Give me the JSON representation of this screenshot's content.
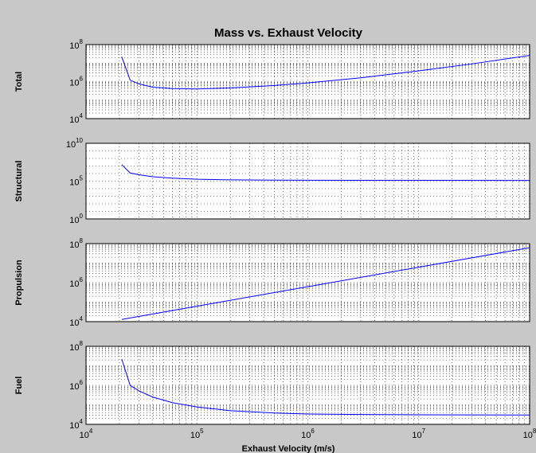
{
  "figure": {
    "background": "#c8c8c8",
    "line_color": "#0000ff",
    "title": "Mass vs. Exhaust Velocity",
    "xlabel": "Exhaust Velocity (m/s)",
    "x_tick_labels": [
      {
        "base": "10",
        "exp": "4"
      },
      {
        "base": "10",
        "exp": "5"
      },
      {
        "base": "10",
        "exp": "6"
      },
      {
        "base": "10",
        "exp": "7"
      },
      {
        "base": "10",
        "exp": "8"
      }
    ]
  },
  "chart_data": [
    {
      "type": "line",
      "title": "Mass vs. Exhaust Velocity",
      "ylabel": "Total",
      "xscale": "log",
      "yscale": "log",
      "xlim": [
        10000,
        100000000
      ],
      "ylim": [
        10000,
        100000000
      ],
      "grid": true,
      "y_tick_labels": [
        {
          "base": "10",
          "exp": "4"
        },
        {
          "base": "10",
          "exp": "6"
        },
        {
          "base": "10",
          "exp": "8"
        }
      ],
      "x": [
        21000,
        25000,
        30000,
        40000,
        60000,
        100000,
        200000,
        500000,
        1000000,
        3000000,
        10000000,
        30000000,
        100000000
      ],
      "y": [
        22000000,
        1200000,
        750000,
        500000,
        420000,
        400000,
        450000,
        620000,
        850000,
        1600000,
        3800000,
        9000000,
        26000000
      ]
    },
    {
      "type": "line",
      "ylabel": "Structural",
      "xscale": "log",
      "yscale": "log",
      "xlim": [
        10000,
        100000000
      ],
      "ylim": [
        1,
        10000000000
      ],
      "grid": true,
      "y_tick_labels": [
        {
          "base": "10",
          "exp": "0"
        },
        {
          "base": "10",
          "exp": "5"
        },
        {
          "base": "10",
          "exp": "10"
        }
      ],
      "x": [
        21000,
        25000,
        30000,
        40000,
        60000,
        100000,
        200000,
        500000,
        1000000,
        3000000,
        10000000,
        100000000
      ],
      "y": [
        15000000,
        1200000,
        700000,
        380000,
        250000,
        180000,
        150000,
        135000,
        130000,
        128000,
        127000,
        125000
      ]
    },
    {
      "type": "line",
      "ylabel": "Propulsion",
      "xscale": "log",
      "yscale": "log",
      "xlim": [
        10000,
        100000000
      ],
      "ylim": [
        10000,
        100000000
      ],
      "grid": true,
      "y_tick_labels": [
        {
          "base": "10",
          "exp": "4"
        },
        {
          "base": "10",
          "exp": "6"
        },
        {
          "base": "10",
          "exp": "8"
        }
      ],
      "x": [
        21000,
        100000,
        1000000,
        10000000,
        100000000
      ],
      "y": [
        13000,
        62000,
        620000,
        6200000,
        62000000
      ]
    },
    {
      "type": "line",
      "ylabel": "Fuel",
      "xscale": "log",
      "yscale": "log",
      "xlim": [
        10000,
        100000000
      ],
      "ylim": [
        10000,
        100000000
      ],
      "grid": true,
      "y_tick_labels": [
        {
          "base": "10",
          "exp": "4"
        },
        {
          "base": "10",
          "exp": "6"
        },
        {
          "base": "10",
          "exp": "8"
        }
      ],
      "x": [
        21000,
        25000,
        30000,
        40000,
        60000,
        100000,
        200000,
        500000,
        1000000,
        3000000,
        10000000,
        100000000
      ],
      "y": [
        22000000,
        1000000,
        520000,
        250000,
        130000,
        78000,
        50000,
        38000,
        34000,
        32000,
        31000,
        30000
      ]
    }
  ]
}
